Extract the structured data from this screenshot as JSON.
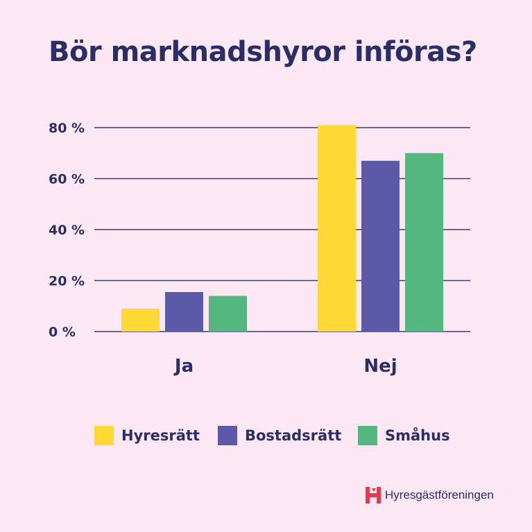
{
  "colors": {
    "background": "#fce8f4",
    "text": "#2a2d66",
    "grid": "#3a3b6e",
    "series": [
      "#fdd935",
      "#5c5aa6",
      "#53b77f"
    ],
    "logo": "#e83a4f"
  },
  "title": "Bör marknadshyror införas?",
  "brand": {
    "name": "Hyresgästföreningen",
    "logo_icon": "h-logo-icon"
  },
  "chart_data": {
    "type": "bar",
    "title": "Bör marknadshyror införas?",
    "categories": [
      "Ja",
      "Nej"
    ],
    "series": [
      {
        "name": "Hyresrätt",
        "values": [
          9,
          81
        ]
      },
      {
        "name": "Bostadsrätt",
        "values": [
          15.5,
          67
        ]
      },
      {
        "name": "Småhus",
        "values": [
          14,
          70
        ]
      }
    ],
    "yticks": [
      0,
      20,
      40,
      60,
      80
    ],
    "ytick_labels": [
      "0 %",
      "20 %",
      "40 %",
      "60 %",
      "80 %"
    ],
    "ylim": [
      0,
      80
    ],
    "grid": true,
    "legend": "bottom",
    "xlabel": "",
    "ylabel": ""
  }
}
